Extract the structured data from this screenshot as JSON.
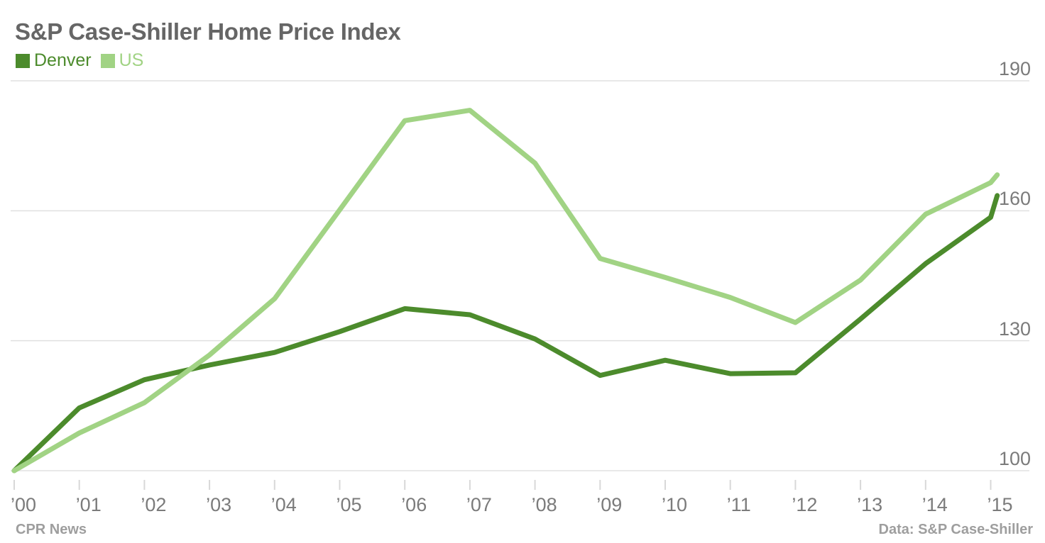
{
  "chart": {
    "title": "S&P Case-Shiller Home Price Index",
    "footer": {
      "left": "CPR News",
      "right": "Data: S&P Case-Shiller"
    }
  },
  "chart_data": {
    "type": "line",
    "title": "S&P Case-Shiller Home Price Index",
    "x_years": [
      2000,
      2001,
      2002,
      2003,
      2004,
      2005,
      2006,
      2007,
      2008,
      2009,
      2010,
      2011,
      2012,
      2013,
      2014,
      2015
    ],
    "x_tick_labels": [
      "’00",
      "’01",
      "’02",
      "’03",
      "’04",
      "’05",
      "’06",
      "’07",
      "’08",
      "’09",
      "’10",
      "’11",
      "’12",
      "’13",
      "’14",
      "’15"
    ],
    "y_ticks": [
      100,
      130,
      160,
      190
    ],
    "y_tick_labels": [
      "100",
      "130",
      "160",
      "190"
    ],
    "ylim": [
      100,
      190
    ],
    "grid": "horizontal",
    "legend_position": "top-left",
    "series": [
      {
        "name": "Denver",
        "color": "#4c8b2c",
        "x": [
          2000,
          2001,
          2002,
          2003,
          2004,
          2005,
          2006,
          2007,
          2008,
          2009,
          2010,
          2011,
          2012,
          2013,
          2014,
          2015,
          2015.1
        ],
        "values": [
          100,
          114.5,
          121,
          124.4,
          127.3,
          132.1,
          137.4,
          136,
          130.4,
          122,
          125.5,
          122.4,
          122.6,
          135,
          147.8,
          158.5,
          163.5
        ]
      },
      {
        "name": "US",
        "color": "#a1d384",
        "x": [
          2000,
          2001,
          2002,
          2003,
          2004,
          2005,
          2006,
          2007,
          2008,
          2009,
          2010,
          2011,
          2012,
          2013,
          2014,
          2015,
          2015.1
        ],
        "values": [
          100,
          108.7,
          115.7,
          126.7,
          139.7,
          160.2,
          180.8,
          183.2,
          171,
          149,
          144.6,
          140,
          134.2,
          144,
          159.2,
          166.5,
          168.3
        ]
      }
    ]
  },
  "style": {
    "background": "#ffffff",
    "title_color": "#666666",
    "axis_label_color": "#7b7b7b",
    "gridline_color": "#e0e0e0",
    "tick_color": "#d8d8d8",
    "footer_color": "#9e9e9e"
  }
}
